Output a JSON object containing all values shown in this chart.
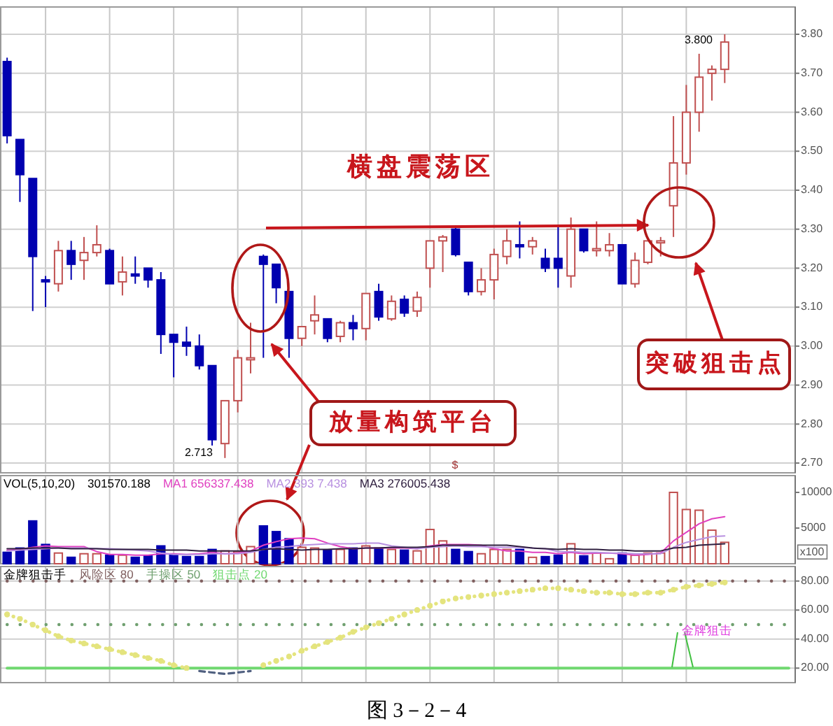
{
  "chart_data": [
    {
      "type": "candlestick",
      "categories": [
        null,
        null,
        null,
        null,
        null,
        null,
        null,
        null,
        null,
        null,
        null,
        null,
        null,
        null,
        null,
        null,
        null,
        null,
        null,
        null,
        null,
        null,
        null,
        null,
        null,
        null,
        null,
        null,
        null,
        null,
        null,
        null,
        null,
        null,
        null,
        null,
        null,
        null,
        null,
        null,
        null,
        null,
        null,
        null,
        null,
        null,
        null,
        null,
        null,
        null,
        null,
        null,
        null,
        null,
        null,
        null,
        null,
        null,
        null,
        null,
        null,
        null
      ],
      "ohlc": [
        [
          3.73,
          3.74,
          3.52,
          3.54
        ],
        [
          3.53,
          3.53,
          3.37,
          3.44
        ],
        [
          3.43,
          3.43,
          3.09,
          3.23
        ],
        [
          3.17,
          3.18,
          3.1,
          3.165
        ],
        [
          3.16,
          3.27,
          3.14,
          3.245
        ],
        [
          3.245,
          3.27,
          3.17,
          3.21
        ],
        [
          3.22,
          3.28,
          3.17,
          3.24
        ],
        [
          3.24,
          3.31,
          3.23,
          3.26
        ],
        [
          3.245,
          3.25,
          3.16,
          3.16
        ],
        [
          3.165,
          3.23,
          3.13,
          3.19
        ],
        [
          3.185,
          3.23,
          3.16,
          3.18
        ],
        [
          3.2,
          3.2,
          3.15,
          3.17
        ],
        [
          3.17,
          3.19,
          2.98,
          3.03
        ],
        [
          3.03,
          3.03,
          2.92,
          3.01
        ],
        [
          3.01,
          3.05,
          2.975,
          3.0
        ],
        [
          3.0,
          3.03,
          2.94,
          2.95
        ],
        [
          2.95,
          2.95,
          2.745,
          2.76
        ],
        [
          2.75,
          2.86,
          2.713,
          2.86
        ],
        [
          2.86,
          2.99,
          2.83,
          2.97
        ],
        [
          2.965,
          3.06,
          2.93,
          2.97
        ],
        [
          3.23,
          3.235,
          2.97,
          3.21
        ],
        [
          3.21,
          3.21,
          3.11,
          3.15
        ],
        [
          3.14,
          3.14,
          2.97,
          3.02
        ],
        [
          3.02,
          3.05,
          3.0,
          3.05
        ],
        [
          3.065,
          3.13,
          3.03,
          3.08
        ],
        [
          3.07,
          3.07,
          3.01,
          3.02
        ],
        [
          3.025,
          3.065,
          3.01,
          3.06
        ],
        [
          3.06,
          3.08,
          3.015,
          3.045
        ],
        [
          3.045,
          3.135,
          3.015,
          3.135
        ],
        [
          3.14,
          3.16,
          3.065,
          3.075
        ],
        [
          3.07,
          3.13,
          3.065,
          3.115
        ],
        [
          3.12,
          3.13,
          3.075,
          3.085
        ],
        [
          3.09,
          3.14,
          3.075,
          3.125
        ],
        [
          3.2,
          3.27,
          3.15,
          3.27
        ],
        [
          3.27,
          3.285,
          3.19,
          3.28
        ],
        [
          3.3,
          3.31,
          3.23,
          3.235
        ],
        [
          3.215,
          3.215,
          3.13,
          3.14
        ],
        [
          3.14,
          3.2,
          3.13,
          3.17
        ],
        [
          3.17,
          3.25,
          3.12,
          3.235
        ],
        [
          3.23,
          3.3,
          3.21,
          3.27
        ],
        [
          3.26,
          3.32,
          3.225,
          3.255
        ],
        [
          3.255,
          3.28,
          3.235,
          3.27
        ],
        [
          3.225,
          3.25,
          3.19,
          3.2
        ],
        [
          3.225,
          3.31,
          3.15,
          3.2
        ],
        [
          3.18,
          3.33,
          3.15,
          3.3
        ],
        [
          3.3,
          3.3,
          3.24,
          3.245
        ],
        [
          3.245,
          3.32,
          3.23,
          3.25
        ],
        [
          3.245,
          3.29,
          3.23,
          3.26
        ],
        [
          3.26,
          3.26,
          3.16,
          3.16
        ],
        [
          3.16,
          3.24,
          3.15,
          3.22
        ],
        [
          3.215,
          3.27,
          3.21,
          3.27
        ],
        [
          3.265,
          3.28,
          3.23,
          3.27
        ],
        [
          3.36,
          3.59,
          3.28,
          3.47
        ],
        [
          3.47,
          3.67,
          3.44,
          3.6
        ],
        [
          3.6,
          3.75,
          3.55,
          3.69
        ],
        [
          3.7,
          3.72,
          3.63,
          3.71
        ],
        [
          3.71,
          3.8,
          3.675,
          3.78
        ],
        null,
        null,
        null,
        null,
        null
      ],
      "colors": [
        "#0000b0",
        "#0000b0",
        "#0000b0",
        "#0000b0",
        "#c05050",
        "#0000b0",
        "#c05050",
        "#c05050",
        "#0000b0",
        "#c05050",
        "#0000b0",
        "#0000b0",
        "#0000b0",
        "#0000b0",
        "#0000b0",
        "#0000b0",
        "#0000b0",
        "#c05050",
        "#c05050",
        "#c05050",
        "#0000b0",
        "#0000b0",
        "#0000b0",
        "#c05050",
        "#c05050",
        "#0000b0",
        "#c05050",
        "#0000b0",
        "#c05050",
        "#0000b0",
        "#c05050",
        "#0000b0",
        "#c05050",
        "#c05050",
        "#c05050",
        "#0000b0",
        "#0000b0",
        "#c05050",
        "#c05050",
        "#c05050",
        "#0000b0",
        "#c05050",
        "#0000b0",
        "#0000b0",
        "#c05050",
        "#0000b0",
        "#c05050",
        "#c05050",
        "#0000b0",
        "#c05050",
        "#c05050",
        "#c05050",
        "#c05050",
        "#c05050",
        "#c05050",
        "#c05050",
        "#c05050",
        null,
        null,
        null,
        null,
        null
      ],
      "ylim": [
        2.675,
        3.87
      ],
      "yticks": [
        {
          "value": 2.7,
          "label": "2.70"
        },
        {
          "value": 2.8,
          "label": "2.80"
        },
        {
          "value": 2.9,
          "label": "2.90"
        },
        {
          "value": 3.0,
          "label": "3.00"
        },
        {
          "value": 3.1,
          "label": "3.10"
        },
        {
          "value": 3.2,
          "label": "3.20"
        },
        {
          "value": 3.3,
          "label": "3.30"
        },
        {
          "value": 3.4,
          "label": "3.40"
        },
        {
          "value": 3.5,
          "label": "3.50"
        },
        {
          "value": 3.6,
          "label": "3.60"
        },
        {
          "value": 3.7,
          "label": "3.70"
        },
        {
          "value": 3.8,
          "label": "3.80"
        }
      ],
      "grid": true,
      "tick_labels": "y",
      "annotations": [
        "2.713",
        "3.800",
        "横盘震荡区",
        "放量构筑平台",
        "突破狙击点",
        "$"
      ]
    },
    {
      "type": "bar",
      "title": "VOL(5,10,20)",
      "subtitle": "301570.188",
      "ylabel": "x100",
      "categories": [
        null,
        null,
        null,
        null,
        null,
        null,
        null,
        null,
        null,
        null,
        null,
        null,
        null,
        null,
        null,
        null,
        null,
        null,
        null,
        null,
        null,
        null,
        null,
        null,
        null,
        null,
        null,
        null,
        null,
        null,
        null,
        null,
        null,
        null,
        null,
        null,
        null,
        null,
        null,
        null,
        null,
        null,
        null,
        null,
        null,
        null,
        null,
        null,
        null,
        null,
        null,
        null,
        null,
        null,
        null,
        null,
        null,
        null,
        null,
        null,
        null,
        null
      ],
      "series": [
        {
          "type": "bar",
          "values": [
            1600,
            2200,
            6000,
            2700,
            1500,
            900,
            1400,
            1400,
            1200,
            1200,
            900,
            1100,
            2500,
            1200,
            1000,
            1000,
            2000,
            1800,
            1700,
            2400,
            5300,
            4500,
            3500,
            2300,
            2200,
            1900,
            2000,
            2200,
            2500,
            2200,
            2000,
            1900,
            1800,
            4800,
            3200,
            2000,
            1700,
            1400,
            2000,
            2000,
            2000,
            900,
            1000,
            1200,
            2800,
            1100,
            1500,
            700,
            1500,
            1200,
            1500,
            1500,
            10000,
            7600,
            7500,
            4700,
            3000,
            null,
            null,
            null,
            null,
            null
          ],
          "colors": [
            "#0000b0",
            "#0000b0",
            "#0000b0",
            "#0000b0",
            "#c05050",
            "#0000b0",
            "#c05050",
            "#c05050",
            "#0000b0",
            "#c05050",
            "#0000b0",
            "#0000b0",
            "#0000b0",
            "#0000b0",
            "#0000b0",
            "#0000b0",
            "#0000b0",
            "#c05050",
            "#c05050",
            "#c05050",
            "#0000b0",
            "#0000b0",
            "#0000b0",
            "#c05050",
            "#c05050",
            "#0000b0",
            "#c05050",
            "#0000b0",
            "#c05050",
            "#0000b0",
            "#c05050",
            "#0000b0",
            "#c05050",
            "#c05050",
            "#c05050",
            "#0000b0",
            "#0000b0",
            "#c05050",
            "#c05050",
            "#c05050",
            "#0000b0",
            "#c05050",
            "#0000b0",
            "#0000b0",
            "#c05050",
            "#0000b0",
            "#c05050",
            "#c05050",
            "#0000b0",
            "#c05050",
            "#c05050",
            "#c05050",
            "#c05050",
            "#c05050",
            "#c05050",
            "#c05050",
            "#c05050",
            null,
            null,
            null,
            null,
            null
          ]
        },
        {
          "type": "line",
          "name": "MA1 656337.438",
          "color": "#e040c0",
          "values": [
            1900,
            2000,
            2300,
            2500,
            2400,
            2400,
            2400,
            1700,
            1300,
            1300,
            1200,
            1200,
            1400,
            1400,
            1300,
            1400,
            1600,
            1400,
            1500,
            1800,
            2600,
            3100,
            3500,
            3600,
            3500,
            2900,
            2400,
            2100,
            2200,
            2200,
            2200,
            2200,
            2100,
            2500,
            2700,
            2700,
            2700,
            2600,
            2100,
            1800,
            1800,
            1600,
            1600,
            1400,
            1600,
            1400,
            1500,
            1500,
            1400,
            1200,
            1300,
            1500,
            3200,
            4400,
            5600,
            6300,
            6600,
            null,
            null,
            null,
            null,
            null
          ]
        },
        {
          "type": "line",
          "name": "MA2 393 7.438",
          "color": "#b890e0",
          "values": [
            1800,
            1900,
            2000,
            2100,
            2200,
            2200,
            2200,
            2100,
            2100,
            2000,
            1900,
            1800,
            1500,
            1300,
            1300,
            1300,
            1400,
            1400,
            1400,
            1600,
            2000,
            2300,
            2400,
            2600,
            2700,
            2800,
            2800,
            2800,
            2900,
            2900,
            2500,
            2300,
            2100,
            2300,
            2400,
            2500,
            2400,
            2400,
            2300,
            2300,
            2300,
            2200,
            2100,
            1700,
            1700,
            1600,
            1600,
            1500,
            1500,
            1400,
            1400,
            1400,
            2300,
            3000,
            3400,
            3800,
            3900,
            null,
            null,
            null,
            null,
            null
          ]
        },
        {
          "type": "line",
          "name": "MA3 276005.438",
          "color": "#302040",
          "values": [
            2100,
            2100,
            2200,
            2200,
            2200,
            2100,
            2100,
            2100,
            2000,
            2000,
            2000,
            2000,
            1900,
            1900,
            1900,
            1800,
            1800,
            1800,
            1800,
            1800,
            2000,
            2100,
            2000,
            1900,
            2000,
            2000,
            2100,
            2100,
            2200,
            2200,
            2300,
            2300,
            2300,
            2400,
            2600,
            2600,
            2600,
            2600,
            2600,
            2600,
            2400,
            2200,
            2100,
            2000,
            2100,
            2000,
            2000,
            1900,
            1900,
            1800,
            1800,
            1800,
            2200,
            2300,
            2600,
            2700,
            2800,
            null,
            null,
            null,
            null,
            null
          ]
        }
      ],
      "ylim": [
        0,
        12350
      ],
      "yticks": [
        5000,
        10000
      ],
      "grid": "x",
      "legend": "top left",
      "tick_labels": "y"
    },
    {
      "type": "line",
      "title": "金牌狙击手",
      "categories": [
        null,
        null,
        null,
        null,
        null,
        null,
        null,
        null,
        null,
        null,
        null,
        null,
        null,
        null,
        null,
        null,
        null,
        null,
        null,
        null,
        null,
        null,
        null,
        null,
        null,
        null,
        null,
        null,
        null,
        null,
        null,
        null,
        null,
        null,
        null,
        null,
        null,
        null,
        null,
        null,
        null,
        null,
        null,
        null,
        null,
        null,
        null,
        null,
        null,
        null,
        null,
        null,
        null,
        null,
        null,
        null,
        null,
        null,
        null,
        null,
        null,
        null
      ],
      "series": [
        {
          "color": "#e4e47e",
          "line_style": "dotted",
          "values": [
            57,
            54,
            50,
            46,
            42,
            39,
            37,
            35,
            33,
            31,
            29,
            27,
            25,
            22,
            20,
            null,
            null,
            null,
            null,
            null,
            22,
            25,
            28,
            32,
            35,
            38,
            41,
            45,
            48,
            51,
            54,
            57,
            60,
            63,
            66,
            68,
            69,
            70,
            71,
            72,
            73,
            74,
            75,
            75,
            74,
            73,
            72,
            72,
            71,
            71,
            72,
            72,
            74,
            76,
            77,
            78,
            79,
            null,
            null,
            null,
            null,
            null
          ]
        },
        {
          "color": "#506080",
          "line_style": "dashed",
          "values": [
            null,
            null,
            null,
            null,
            null,
            null,
            null,
            null,
            null,
            null,
            null,
            null,
            null,
            null,
            null,
            18,
            17,
            16,
            17,
            18,
            null,
            null,
            null,
            null,
            null,
            null,
            null,
            null,
            null,
            null,
            null,
            null,
            null,
            null,
            null,
            null,
            null,
            null,
            null,
            null,
            null,
            null,
            null,
            null,
            null,
            null,
            null,
            null,
            null,
            null,
            null,
            null,
            null,
            null,
            null,
            null,
            null,
            null,
            null,
            null,
            null,
            null
          ]
        }
      ],
      "ref_lines": [
        {
          "axis": "y",
          "value": 80,
          "label": "风险区 80",
          "color": "#806060",
          "line_style": "dotted"
        },
        {
          "axis": "y",
          "value": 50,
          "label": "手操区 50",
          "color": "#70a070",
          "line_style": "dotted"
        },
        {
          "axis": "y",
          "value": 20,
          "label": "狙击点 20",
          "color": "#70d870",
          "line_style": "solid"
        }
      ],
      "ylim": [
        10,
        90
      ],
      "yticks": [
        {
          "value": 20,
          "label": "20.00"
        },
        {
          "value": 40,
          "label": "40.00"
        },
        {
          "value": 60,
          "label": "60.00"
        },
        {
          "value": 80,
          "label": "80.00"
        }
      ],
      "grid": true,
      "tick_labels": "y",
      "annotations": [
        "金牌狙击",
        "图 3－2－4"
      ]
    }
  ]
}
